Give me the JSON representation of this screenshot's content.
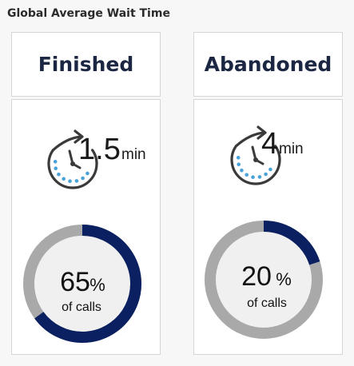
{
  "widget": {
    "title": "Global Average Wait Time"
  },
  "cards": [
    {
      "header": "Finished",
      "wait_time_value": "1.5",
      "wait_time_unit": "min",
      "percent_value": "65",
      "percent_sign": "%",
      "percent_caption": "of calls",
      "percent_fraction": 0.65
    },
    {
      "header": "Abandoned",
      "wait_time_value": "4",
      "wait_time_unit": "min",
      "percent_value": "20",
      "percent_sign": "%",
      "percent_caption": "of calls",
      "percent_fraction": 0.2
    }
  ],
  "colors": {
    "donut_fill": "#0b2060",
    "donut_track": "#a9a9a9",
    "clock_outline": "#3a3a3a",
    "clock_dots": "#4aa3d8",
    "header_text": "#1b2642"
  },
  "icons": {
    "clock": "timer-clock-icon"
  }
}
